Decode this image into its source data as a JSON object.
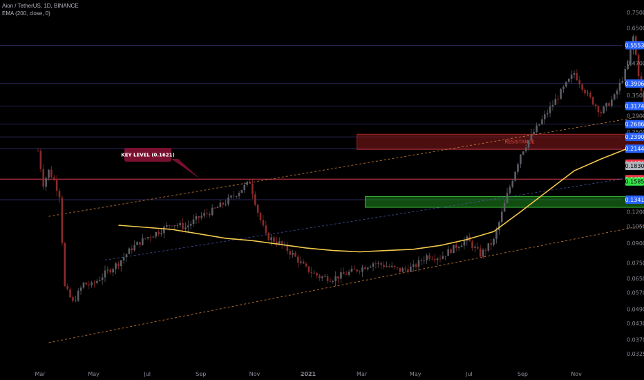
{
  "header": {
    "symbol_line": "Aion / TetherUS, 1D, BINANCE",
    "indicator_line": "EMA (200, close, 0)"
  },
  "colors": {
    "background": "#000000",
    "candle_up": "#5c5f66",
    "candle_down": "#8b2a2a",
    "ema": "#f2c94c",
    "channel_line": "#e08a3a",
    "level_line": "#3a3a80",
    "key_level_line": "#ff4560",
    "resistance_zone": "#8b1a1a",
    "support_zone": "#1f8a1f",
    "callout_bg": "#7a1030"
  },
  "chart_data": {
    "type": "candlestick",
    "title": "Aion / TetherUS, 1D, BINANCE",
    "y_scale": "log",
    "ylim": [
      0.029,
      0.8
    ],
    "x_ticks": [
      "Mar",
      "May",
      "Jul",
      "Sep",
      "Nov",
      "2021",
      "Mar",
      "May",
      "Jul",
      "Sep",
      "Nov"
    ],
    "y_ticks": [
      "0.7500",
      "0.6500",
      "0.4700",
      "0.3500",
      "0.2900",
      "0.2500",
      "0.1200",
      "0.1050",
      "0.0900",
      "0.0750",
      "0.0650",
      "0.0570",
      "0.0490",
      "0.0430",
      "0.0370",
      "0.0325"
    ],
    "price_labels": [
      {
        "text": "0.5553",
        "value": 0.5553,
        "color": "#2962ff",
        "text_color": "#ffffff"
      },
      {
        "text": "0.3906",
        "value": 0.3906,
        "color": "#2962ff",
        "text_color": "#ffffff"
      },
      {
        "text": "0.3174",
        "value": 0.3174,
        "color": "#2962ff",
        "text_color": "#ffffff"
      },
      {
        "text": "0.2686",
        "value": 0.2686,
        "color": "#2962ff",
        "text_color": "#ffffff"
      },
      {
        "text": "0.2390",
        "value": 0.239,
        "color": "#2962ff",
        "text_color": "#ffffff"
      },
      {
        "text": "0.2144",
        "value": 0.2144,
        "color": "#2962ff",
        "text_color": "#ffffff"
      },
      {
        "text": "0.1870",
        "value": 0.187,
        "color": "#f23645",
        "text_color": "#ffffff"
      },
      {
        "text": "0.1830",
        "value": 0.183,
        "color": "#b2b5be",
        "text_color": "#000000"
      },
      {
        "text": "0.1621",
        "value": 0.1621,
        "color": "#f23645",
        "text_color": "#ffffff"
      },
      {
        "text": "0.1585",
        "value": 0.1585,
        "color": "#36e34a",
        "text_color": "#000000"
      },
      {
        "text": "0.1341",
        "value": 0.1341,
        "color": "#2962ff",
        "text_color": "#ffffff"
      }
    ],
    "horizontal_levels": [
      0.5553,
      0.3906,
      0.3174,
      0.2686,
      0.239,
      0.2144,
      0.1621,
      0.1341
    ],
    "key_level": {
      "label": "KEY LEVEL (0.1621)",
      "value": 0.1621
    },
    "zones": [
      {
        "label": "RESISTANCE",
        "from": 0.213,
        "to": 0.245,
        "start_month": 11.9,
        "end_month": 23.0
      },
      {
        "label": "",
        "from": 0.125,
        "to": 0.138,
        "start_month": 12.2,
        "end_month": 22.8
      }
    ],
    "trend_channels": [
      {
        "from": [
          0.4,
          0.036
        ],
        "to": [
          23.0,
          0.108
        ],
        "style": "dashed-orange"
      },
      {
        "from": [
          0.4,
          0.115
        ],
        "to": [
          23.0,
          0.294
        ],
        "style": "dashed-orange"
      },
      {
        "from": [
          2.5,
          0.077
        ],
        "to": [
          23.0,
          0.17
        ],
        "style": "dashed-blue"
      }
    ],
    "price_path": [
      [
        0.0,
        0.21
      ],
      [
        0.2,
        0.15
      ],
      [
        0.4,
        0.18
      ],
      [
        0.6,
        0.16
      ],
      [
        0.8,
        0.14
      ],
      [
        1.0,
        0.055
      ],
      [
        1.2,
        0.05
      ],
      [
        1.5,
        0.06
      ],
      [
        2.0,
        0.062
      ],
      [
        2.5,
        0.066
      ],
      [
        3.0,
        0.075
      ],
      [
        3.5,
        0.085
      ],
      [
        4.0,
        0.095
      ],
      [
        4.5,
        0.1
      ],
      [
        5.0,
        0.11
      ],
      [
        5.5,
        0.105
      ],
      [
        6.0,
        0.115
      ],
      [
        6.5,
        0.12
      ],
      [
        7.0,
        0.13
      ],
      [
        7.5,
        0.145
      ],
      [
        7.9,
        0.16
      ],
      [
        8.2,
        0.12
      ],
      [
        8.5,
        0.095
      ],
      [
        9.0,
        0.09
      ],
      [
        9.5,
        0.08
      ],
      [
        10.0,
        0.07
      ],
      [
        10.5,
        0.065
      ],
      [
        11.0,
        0.064
      ],
      [
        11.5,
        0.068
      ],
      [
        12.0,
        0.071
      ],
      [
        12.5,
        0.075
      ],
      [
        13.0,
        0.074
      ],
      [
        13.5,
        0.07
      ],
      [
        14.0,
        0.072
      ],
      [
        14.5,
        0.08
      ],
      [
        15.0,
        0.078
      ],
      [
        15.5,
        0.085
      ],
      [
        16.0,
        0.092
      ],
      [
        16.5,
        0.08
      ],
      [
        17.0,
        0.09
      ],
      [
        17.5,
        0.14
      ],
      [
        18.0,
        0.2
      ],
      [
        18.5,
        0.25
      ],
      [
        19.0,
        0.29
      ],
      [
        19.5,
        0.36
      ],
      [
        20.0,
        0.42
      ],
      [
        20.5,
        0.35
      ],
      [
        21.0,
        0.3
      ],
      [
        21.5,
        0.34
      ],
      [
        22.0,
        0.45
      ],
      [
        22.2,
        0.62
      ],
      [
        22.5,
        0.35
      ],
      [
        22.8,
        0.23
      ]
    ],
    "candle_path": [
      [
        0.0,
        0.21
      ],
      [
        0.2,
        0.155
      ],
      [
        0.4,
        0.175
      ],
      [
        0.6,
        0.16
      ],
      [
        0.8,
        0.14
      ],
      [
        1.0,
        0.06
      ],
      [
        1.3,
        0.052
      ],
      [
        1.7,
        0.062
      ],
      [
        2.0,
        0.061
      ],
      [
        2.5,
        0.068
      ],
      [
        3.0,
        0.075
      ],
      [
        3.5,
        0.086
      ],
      [
        4.0,
        0.094
      ],
      [
        4.5,
        0.1
      ],
      [
        5.0,
        0.108
      ],
      [
        5.5,
        0.104
      ],
      [
        6.0,
        0.114
      ],
      [
        6.5,
        0.121
      ],
      [
        7.0,
        0.131
      ],
      [
        7.5,
        0.145
      ],
      [
        7.9,
        0.158
      ],
      [
        8.2,
        0.12
      ],
      [
        8.5,
        0.096
      ],
      [
        9.0,
        0.09
      ],
      [
        9.5,
        0.081
      ],
      [
        10.0,
        0.071
      ],
      [
        10.5,
        0.066
      ],
      [
        11.0,
        0.065
      ],
      [
        11.5,
        0.068
      ],
      [
        12.0,
        0.071
      ],
      [
        12.5,
        0.075
      ],
      [
        13.0,
        0.073
      ],
      [
        13.5,
        0.07
      ],
      [
        14.0,
        0.072
      ],
      [
        14.5,
        0.08
      ],
      [
        15.0,
        0.079
      ],
      [
        15.5,
        0.086
      ],
      [
        16.0,
        0.093
      ],
      [
        16.5,
        0.081
      ],
      [
        17.0,
        0.092
      ],
      [
        17.5,
        0.14
      ],
      [
        18.0,
        0.205
      ],
      [
        18.5,
        0.25
      ],
      [
        19.0,
        0.3
      ],
      [
        19.5,
        0.36
      ],
      [
        20.0,
        0.43
      ],
      [
        20.5,
        0.35
      ],
      [
        21.0,
        0.3
      ],
      [
        21.5,
        0.345
      ],
      [
        22.0,
        0.46
      ],
      [
        22.2,
        0.6
      ],
      [
        22.5,
        0.36
      ],
      [
        22.8,
        0.23
      ],
      [
        23.0,
        0.21
      ],
      [
        23.3,
        0.18
      ],
      [
        23.6,
        0.16
      ],
      [
        24.0,
        0.14
      ],
      [
        24.5,
        0.11
      ],
      [
        25.0,
        0.12
      ],
      [
        25.5,
        0.13
      ],
      [
        26.0,
        0.115
      ],
      [
        26.5,
        0.125
      ],
      [
        27.0,
        0.15
      ],
      [
        27.5,
        0.175
      ],
      [
        28.0,
        0.185
      ],
      [
        28.5,
        0.195
      ],
      [
        29.0,
        0.2
      ],
      [
        29.5,
        0.17
      ],
      [
        30.0,
        0.15
      ],
      [
        30.5,
        0.16
      ],
      [
        31.0,
        0.175
      ],
      [
        31.5,
        0.18
      ],
      [
        32.0,
        0.178
      ],
      [
        32.5,
        0.185
      ],
      [
        33.0,
        0.178
      ],
      [
        33.5,
        0.172
      ],
      [
        34.0,
        0.176
      ],
      [
        34.5,
        0.18
      ],
      [
        35.0,
        0.168
      ],
      [
        35.4,
        0.175
      ]
    ],
    "ema_path": [
      [
        3.0,
        0.106
      ],
      [
        4.0,
        0.104
      ],
      [
        5.0,
        0.102
      ],
      [
        6.0,
        0.098
      ],
      [
        7.0,
        0.094
      ],
      [
        8.0,
        0.092
      ],
      [
        9.0,
        0.089
      ],
      [
        10.0,
        0.086
      ],
      [
        11.0,
        0.084
      ],
      [
        12.0,
        0.083
      ],
      [
        13.0,
        0.084
      ],
      [
        14.0,
        0.085
      ],
      [
        15.0,
        0.088
      ],
      [
        16.0,
        0.093
      ],
      [
        17.0,
        0.1
      ],
      [
        18.0,
        0.12
      ],
      [
        19.0,
        0.145
      ],
      [
        20.0,
        0.175
      ],
      [
        21.0,
        0.195
      ],
      [
        22.0,
        0.215
      ],
      [
        23.0,
        0.218
      ],
      [
        24.0,
        0.212
      ],
      [
        25.0,
        0.2
      ],
      [
        26.0,
        0.188
      ],
      [
        27.0,
        0.183
      ],
      [
        28.0,
        0.182
      ],
      [
        29.0,
        0.181
      ],
      [
        30.0,
        0.18
      ],
      [
        31.0,
        0.179
      ],
      [
        32.0,
        0.178
      ],
      [
        33.0,
        0.177
      ],
      [
        34.0,
        0.176
      ],
      [
        35.0,
        0.176
      ],
      [
        35.4,
        0.176
      ]
    ],
    "x_range_months": [
      0,
      38
    ]
  }
}
